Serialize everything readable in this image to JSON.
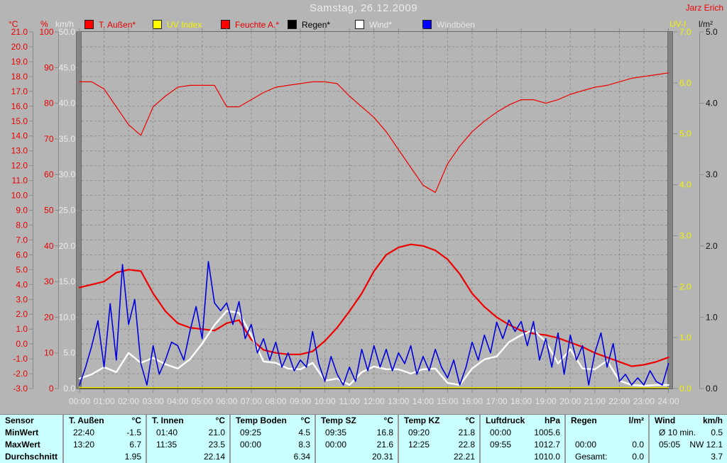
{
  "window": {
    "background": "#b5b5b5"
  },
  "header": {
    "title": "Samstag, 26.12.2009",
    "station_name": "Jarz Erich"
  },
  "legend": {
    "items": [
      {
        "label": "T. Außen*",
        "swatch": "#ff0000",
        "text_color": "#e80000"
      },
      {
        "label": "UV Index",
        "swatch": "#ffff00",
        "text_color": "#f2f200"
      },
      {
        "label": "Feuchte A.*",
        "swatch": "#ff0000",
        "text_color": "#e80000"
      },
      {
        "label": "Regen*",
        "swatch": "#000000",
        "text_color": "#000000"
      },
      {
        "label": "Wind*",
        "swatch": "#ffffff",
        "text_color": "#ececec"
      },
      {
        "label": "Windböen",
        "swatch": "#0000ff",
        "text_color": "#e6e6e6"
      }
    ]
  },
  "chart_data": {
    "type": "line",
    "title": "Samstag, 26.12.2009",
    "grid": true,
    "legend_position": "top",
    "x_axis": {
      "unit": "hour",
      "range": [
        0,
        24
      ],
      "tick_labels": [
        "00:00",
        "01:00",
        "02:00",
        "03:00",
        "04:00",
        "05:00",
        "06:00",
        "07:00",
        "08:00",
        "09:00",
        "10:00",
        "11:00",
        "12:00",
        "13:00",
        "14:00",
        "15:00",
        "16:00",
        "17:00",
        "18:00",
        "19:00",
        "20:00",
        "21:00",
        "22:00",
        "23:00",
        "24:00"
      ]
    },
    "y_axes_left": [
      {
        "name": "temp",
        "unit": "°C",
        "range": [
          -3,
          21
        ],
        "tick_step": 1,
        "decimals": 1,
        "color": "#e80000"
      },
      {
        "name": "humidity",
        "unit": "%",
        "range": [
          0,
          100
        ],
        "tick_step": 10,
        "decimals": 0,
        "color": "#e80000"
      },
      {
        "name": "wind",
        "unit": "km/h",
        "range": [
          0,
          50
        ],
        "tick_step": 5,
        "decimals": 1,
        "color": "#ececec"
      }
    ],
    "y_axes_right": [
      {
        "name": "uv",
        "unit": "UV-I",
        "range": [
          0,
          7
        ],
        "tick_step": 1,
        "decimals": 1,
        "color": "#f2f200"
      },
      {
        "name": "rain",
        "unit": "l/m²",
        "range": [
          0,
          5
        ],
        "tick_step": 1,
        "decimals": 1,
        "color": "#111111"
      }
    ],
    "series": [
      {
        "name": "Feuchte A.*",
        "axis": "humidity",
        "color": "#ee0000",
        "width": 1.2,
        "interval_min": 30,
        "values": [
          86,
          86,
          84,
          79,
          74,
          71,
          79,
          82,
          84.5,
          85,
          85,
          85,
          79,
          79,
          81,
          83,
          84.5,
          85,
          85.5,
          86,
          86,
          85.5,
          82,
          79,
          76,
          72,
          67,
          62,
          57,
          55,
          63,
          68,
          72,
          75,
          77.5,
          79.5,
          81,
          81,
          80,
          81,
          82.5,
          83.5,
          84.5,
          85,
          86,
          87,
          87.5,
          88,
          88.5
        ]
      },
      {
        "name": "T. Außen*",
        "axis": "temp",
        "color": "#ee0000",
        "width": 2.2,
        "interval_min": 30,
        "values": [
          3.8,
          4.0,
          4.2,
          4.8,
          5.0,
          4.9,
          3.4,
          2.2,
          1.4,
          1.1,
          1.0,
          0.9,
          1.4,
          1.6,
          0.3,
          -0.4,
          -0.6,
          -0.7,
          -0.7,
          -0.5,
          0.2,
          1.1,
          2.2,
          3.4,
          4.9,
          6.0,
          6.5,
          6.7,
          6.6,
          6.3,
          5.7,
          4.7,
          3.4,
          2.5,
          1.8,
          1.3,
          0.9,
          0.7,
          0.6,
          0.4,
          0.1,
          -0.2,
          -0.6,
          -0.9,
          -1.2,
          -1.5,
          -1.4,
          -1.2,
          -0.9
        ]
      },
      {
        "name": "Regen*",
        "axis": "rain",
        "color": "#000000",
        "width": 1.0,
        "interval_min": 720,
        "values": [
          0,
          0,
          0
        ]
      },
      {
        "name": "Wind*",
        "axis": "wind",
        "color": "#ffffff",
        "width": 2.4,
        "interval_min": 30,
        "values": [
          1.4,
          2.0,
          3.0,
          2.3,
          5.0,
          3.6,
          4.3,
          3.4,
          2.8,
          4.1,
          6.3,
          8.9,
          10.9,
          10.6,
          7.5,
          3.8,
          3.6,
          2.8,
          2.7,
          3.6,
          1.1,
          1.4,
          0.5,
          2.3,
          3.1,
          2.7,
          2.7,
          2.1,
          2.7,
          2.8,
          0.8,
          0.5,
          2.8,
          4.1,
          4.5,
          6.5,
          7.5,
          8.2,
          6.6,
          3.5,
          5.5,
          2.8,
          2.7,
          3.9,
          1.1,
          0.5,
          0.4,
          0.5,
          0.5
        ]
      },
      {
        "name": "Windböen",
        "axis": "wind",
        "color": "#0000dc",
        "width": 1.6,
        "interval_min": 15,
        "values": [
          0.5,
          3,
          6,
          9.5,
          3,
          11.9,
          4,
          17.4,
          9,
          12.5,
          3.5,
          0.5,
          6,
          2,
          4,
          6.5,
          6,
          4,
          8,
          11.5,
          7,
          17.8,
          12,
          10.9,
          12,
          9,
          12.2,
          7,
          9,
          5,
          7,
          4,
          6.5,
          3,
          5,
          2.5,
          4,
          3,
          8,
          3.5,
          1,
          4.5,
          2,
          0.5,
          3,
          1,
          5.5,
          2.5,
          6,
          3,
          5.5,
          2.5,
          5,
          3.5,
          6,
          2,
          4.5,
          2.5,
          5.5,
          3,
          1.5,
          4,
          0.5,
          3,
          6.5,
          4,
          7.5,
          5,
          9.3,
          7,
          9.6,
          8,
          9.4,
          6,
          9.4,
          4,
          7,
          3,
          7.8,
          2,
          7.5,
          4,
          6,
          0.5,
          5,
          7.8,
          3,
          6.3,
          1,
          2,
          0.5,
          1.5,
          0.5,
          2.5,
          1,
          0.5,
          3.5
        ]
      },
      {
        "name": "UV Index",
        "axis": "uv",
        "color": "#f2f200",
        "width": 1.5,
        "interval_min": 720,
        "values": [
          0,
          0,
          0
        ]
      }
    ]
  },
  "table": {
    "background": "#c9ffff",
    "row_labels": [
      "Sensor",
      "MinWert",
      "MaxWert",
      "Durchschnitt"
    ],
    "columns": [
      {
        "name": "T. Außen",
        "unit": "°C",
        "min_time": "22:40",
        "min_value": "-1.5",
        "max_time": "13:20",
        "max_value": "6.7",
        "avg_label": "",
        "avg_value": "1.95"
      },
      {
        "name": "T. Innen",
        "unit": "°C",
        "min_time": "01:40",
        "min_value": "21.0",
        "max_time": "11:35",
        "max_value": "23.5",
        "avg_label": "",
        "avg_value": "22.14"
      },
      {
        "name": "Temp Boden",
        "unit": "°C",
        "min_time": "09:25",
        "min_value": "4.5",
        "max_time": "00:00",
        "max_value": "8.3",
        "avg_label": "",
        "avg_value": "6.34"
      },
      {
        "name": "Temp SZ",
        "unit": "°C",
        "min_time": "09:35",
        "min_value": "16.8",
        "max_time": "00:00",
        "max_value": "21.6",
        "avg_label": "",
        "avg_value": "20.31"
      },
      {
        "name": "Temp KZ",
        "unit": "°C",
        "min_time": "09:20",
        "min_value": "21.8",
        "max_time": "12:25",
        "max_value": "22.8",
        "avg_label": "",
        "avg_value": "22.21"
      },
      {
        "name": "Luftdruck",
        "unit": "hPa",
        "min_time": "00:00",
        "min_value": "1005.6",
        "max_time": "09:55",
        "max_value": "1012.7",
        "avg_label": "",
        "avg_value": "1010.0"
      },
      {
        "name": "Regen",
        "unit": "l/m²",
        "min_time": "",
        "min_value": "",
        "max_time": "00:00",
        "max_value": "0.0",
        "avg_label": "Gesamt:",
        "avg_value": "0.0"
      },
      {
        "name": "Wind",
        "unit": "km/h",
        "min_time": "Ø 10 min.",
        "min_value": "0.5",
        "max_time": "05:05",
        "max_value": "NW 12.1",
        "avg_label": "",
        "avg_value": "3.7"
      }
    ]
  }
}
